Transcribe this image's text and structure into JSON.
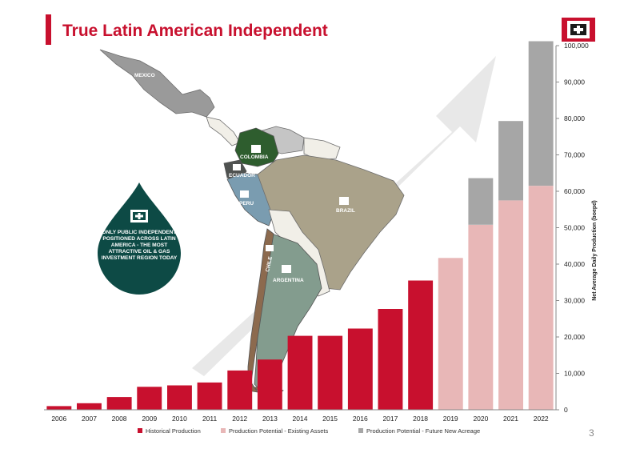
{
  "header": {
    "title": "True Latin American Independent",
    "page_number": "3"
  },
  "colors": {
    "accent": "#c8102e",
    "historical": "#c8102e",
    "existing": "#e8b7b7",
    "future": "#a6a6a6",
    "drop": "#0d4a45",
    "logo_red": "#c8102e"
  },
  "callout": {
    "text": "ONLY PUBLIC INDEPENDENT POSITIONED ACROSS LATIN AMERICA - THE MOST ATTRACTIVE OIL & GAS INVESTMENT REGION TODAY",
    "icon": "company-logo-icon"
  },
  "map": {
    "countries": [
      "MEXICO",
      "COLOMBIA",
      "ECUADOR",
      "PERU",
      "BRAZIL",
      "CHILE",
      "ARGENTINA"
    ]
  },
  "chart_data": {
    "type": "bar",
    "stacked": true,
    "categories": [
      "2006",
      "2007",
      "2008",
      "2009",
      "2010",
      "2011",
      "2012",
      "2013",
      "2014",
      "2015",
      "2016",
      "2017",
      "2018",
      "2019",
      "2020",
      "2021",
      "2022"
    ],
    "series": [
      {
        "name": "Historical Production",
        "color": "#c8102e",
        "values": [
          1000,
          1800,
          3500,
          6300,
          6700,
          7500,
          10800,
          13800,
          20300,
          20300,
          22300,
          27700,
          35500,
          0,
          0,
          0,
          0
        ]
      },
      {
        "name": "Production Potential - Existing Assets",
        "color": "#e8b7b7",
        "values": [
          0,
          0,
          0,
          0,
          0,
          0,
          0,
          0,
          0,
          0,
          0,
          0,
          0,
          41700,
          50800,
          57500,
          61500
        ]
      },
      {
        "name": "Production Potential - Future New Acreage",
        "color": "#a6a6a6",
        "values": [
          0,
          0,
          0,
          0,
          0,
          0,
          0,
          0,
          0,
          0,
          0,
          0,
          0,
          0,
          12800,
          21800,
          39700
        ]
      }
    ],
    "ylabel": "Net Average Daily Production (boepd)",
    "ylim": [
      0,
      100000
    ],
    "yticks": [
      "0",
      "10,000",
      "20,000",
      "30,000",
      "40,000",
      "50,000",
      "60,000",
      "70,000",
      "80,000",
      "90,000",
      "100,000"
    ],
    "y_axis_side": "right",
    "grid": false,
    "legend_position": "bottom"
  }
}
